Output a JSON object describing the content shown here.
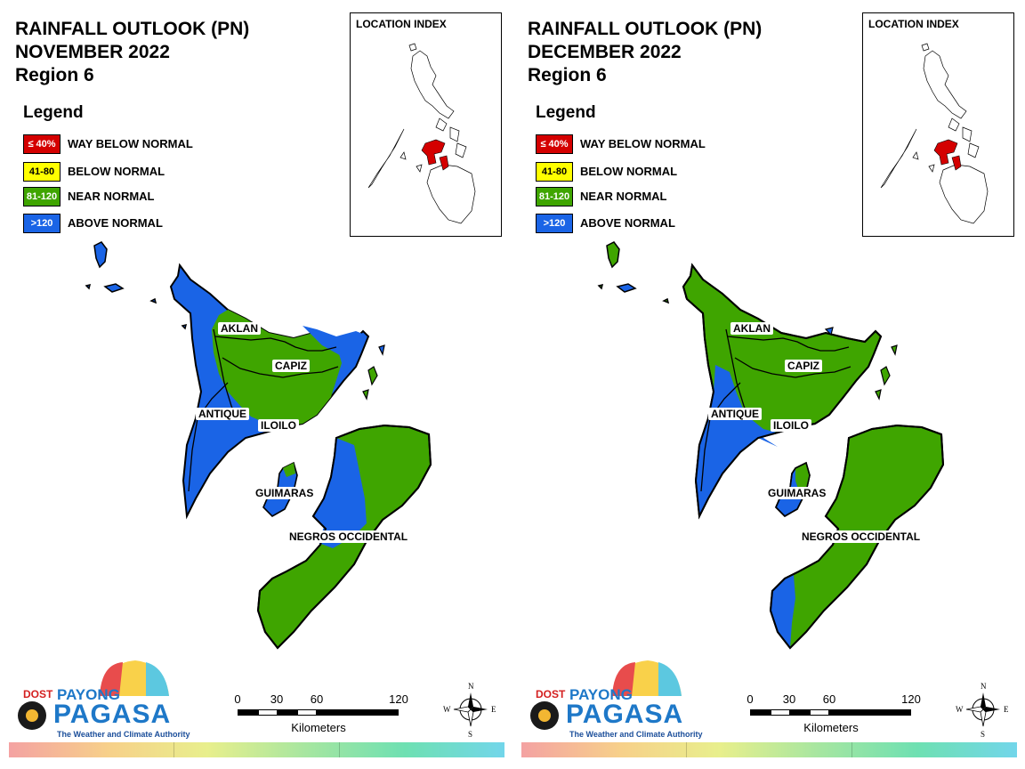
{
  "colors": {
    "way_below": "#d40000",
    "below": "#ffff00",
    "near": "#3fa500",
    "above": "#1a64e6",
    "outline": "#000000"
  },
  "panels": [
    {
      "title_line1": "RAINFALL OUTLOOK (PN)",
      "title_line2": "NOVEMBER 2022",
      "title_line3": "Region 6",
      "legend": {
        "title": "Legend",
        "items": [
          {
            "swatch": "≤ 40%",
            "label": "WAY BELOW NORMAL"
          },
          {
            "swatch": "41-80",
            "label": "BELOW NORMAL"
          },
          {
            "swatch": "81-120",
            "label": "NEAR NORMAL"
          },
          {
            "swatch": ">120",
            "label": "ABOVE NORMAL"
          }
        ]
      },
      "location_index_title": "LOCATION INDEX",
      "provinces": {
        "aklan": "AKLAN",
        "capiz": "CAPIZ",
        "antique": "ANTIQUE",
        "iloilo": "ILOILO",
        "guimaras": "GUIMARAS",
        "negros": "NEGROS OCCIDENTAL"
      },
      "scale": {
        "t0": "0",
        "t30": "30",
        "t60": "60",
        "t120": "120",
        "units": "Kilometers"
      },
      "compass": {
        "n": "N",
        "s": "S",
        "e": "E",
        "w": "W"
      },
      "logo": {
        "dost": "DOST",
        "payong": "PAYONG",
        "pagasa": "PAGASA",
        "tagline": "The Weather and Climate Authority"
      }
    },
    {
      "title_line1": "RAINFALL OUTLOOK (PN)",
      "title_line2": "DECEMBER 2022",
      "title_line3": "Region 6",
      "legend": {
        "title": "Legend",
        "items": [
          {
            "swatch": "≤ 40%",
            "label": "WAY BELOW NORMAL"
          },
          {
            "swatch": "41-80",
            "label": "BELOW NORMAL"
          },
          {
            "swatch": "81-120",
            "label": "NEAR NORMAL"
          },
          {
            "swatch": ">120",
            "label": "ABOVE NORMAL"
          }
        ]
      },
      "location_index_title": "LOCATION INDEX",
      "provinces": {
        "aklan": "AKLAN",
        "capiz": "CAPIZ",
        "antique": "ANTIQUE",
        "iloilo": "ILOILO",
        "guimaras": "GUIMARAS",
        "negros": "NEGROS OCCIDENTAL"
      },
      "scale": {
        "t0": "0",
        "t30": "30",
        "t60": "60",
        "t120": "120",
        "units": "Kilometers"
      },
      "compass": {
        "n": "N",
        "s": "S",
        "e": "E",
        "w": "W"
      },
      "logo": {
        "dost": "DOST",
        "payong": "PAYONG",
        "pagasa": "PAGASA",
        "tagline": "The Weather and Climate Authority"
      }
    }
  ]
}
